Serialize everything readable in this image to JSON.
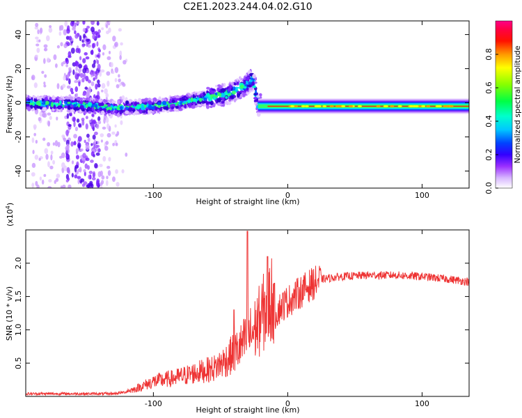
{
  "title": "C2E1.2023.244.04.02.G10",
  "chart_data": [
    {
      "type": "heatmap",
      "xlabel": "Height of straight line (km)",
      "ylabel": "Frequency (Hz)",
      "xlim": [
        -195,
        135
      ],
      "ylim": [
        -50,
        48
      ],
      "x_ticks": [
        -100,
        0,
        100
      ],
      "y_ticks": [
        -40,
        -20,
        0,
        20,
        40
      ],
      "colorbar": {
        "label": "Normalized spectral amplitude",
        "range": [
          0,
          1
        ],
        "ticks": [
          "0.0",
          "0.2",
          "0.4",
          "0.6",
          "0.8"
        ],
        "tick_values": [
          0.0,
          0.2,
          0.4,
          0.6,
          0.8
        ],
        "colormap": "rainbow (white-violet-blue-cyan-green-yellow-orange-red-magenta)"
      },
      "ridge": [
        [
          -195,
          0
        ],
        [
          -160,
          -1
        ],
        [
          -130,
          -3
        ],
        [
          -100,
          -2
        ],
        [
          -80,
          0
        ],
        [
          -60,
          3
        ],
        [
          -45,
          5
        ],
        [
          -32,
          10
        ],
        [
          -26,
          14
        ],
        [
          -22,
          -1
        ],
        [
          -10,
          -2
        ],
        [
          0,
          -2
        ],
        [
          50,
          -2
        ],
        [
          135,
          -2
        ]
      ]
    },
    {
      "type": "line",
      "xlabel": "Height of straight line (km)",
      "ylabel": "SNR (10 * v/v)",
      "exponent_label": "(x10",
      "exponent_power": "4",
      "xlim": [
        -195,
        135
      ],
      "ylim": [
        0,
        2.5
      ],
      "x_ticks": [
        -100,
        0,
        100
      ],
      "y_ticks": [
        "0.5",
        "1.0",
        "1.5",
        "2.0"
      ],
      "y_tick_values": [
        0.5,
        1.0,
        1.5,
        2.0
      ],
      "color": "#ee3333",
      "envelope": [
        [
          -195,
          0.04
        ],
        [
          -160,
          0.04
        ],
        [
          -130,
          0.04
        ],
        [
          -115,
          0.08
        ],
        [
          -100,
          0.18
        ],
        [
          -85,
          0.22
        ],
        [
          -70,
          0.28
        ],
        [
          -55,
          0.34
        ],
        [
          -45,
          0.45
        ],
        [
          -35,
          0.6
        ],
        [
          -25,
          0.8
        ],
        [
          -15,
          1.1
        ],
        [
          -5,
          1.35
        ],
        [
          5,
          1.5
        ],
        [
          15,
          1.65
        ],
        [
          25,
          1.76
        ],
        [
          40,
          1.8
        ],
        [
          60,
          1.82
        ],
        [
          80,
          1.82
        ],
        [
          100,
          1.8
        ],
        [
          120,
          1.76
        ],
        [
          135,
          1.72
        ]
      ],
      "peaks": [
        [
          -30,
          2.48
        ],
        [
          -15,
          2.1
        ],
        [
          -40,
          1.3
        ],
        [
          -10,
          1.7
        ]
      ]
    }
  ],
  "icons": {
    "colorbar-swatch": "gradient"
  }
}
